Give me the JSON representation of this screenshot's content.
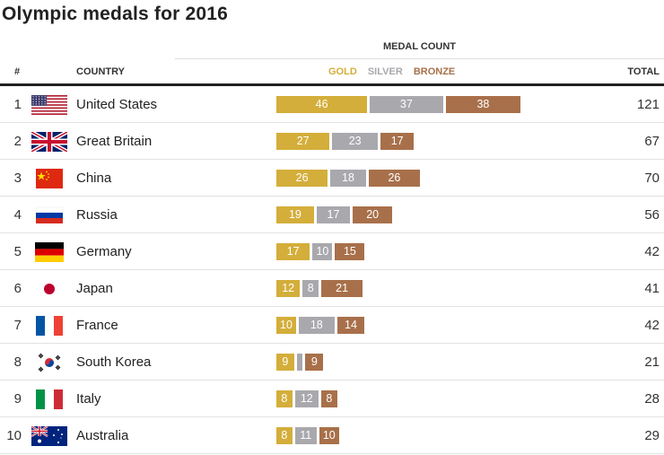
{
  "title": "Olympic medals for 2016",
  "header": {
    "rank": "#",
    "country": "COUNTRY",
    "medal_count": "MEDAL COUNT",
    "total": "TOTAL",
    "legend": {
      "gold": "GOLD",
      "silver": "SILVER",
      "bronze": "BRONZE"
    }
  },
  "colors": {
    "gold": "#d4ae3a",
    "silver": "#a9a8ad",
    "bronze": "#a8704a"
  },
  "chart_data": {
    "type": "bar",
    "stacked": true,
    "orientation": "horizontal",
    "title": "Olympic medals for 2016",
    "categories": [
      "United States",
      "Great Britain",
      "China",
      "Russia",
      "Germany",
      "Japan",
      "France",
      "South Korea",
      "Italy",
      "Australia"
    ],
    "series": [
      {
        "name": "GOLD",
        "values": [
          46,
          27,
          26,
          19,
          17,
          12,
          10,
          9,
          8,
          8
        ]
      },
      {
        "name": "SILVER",
        "values": [
          37,
          23,
          18,
          17,
          10,
          8,
          18,
          3,
          12,
          11
        ]
      },
      {
        "name": "BRONZE",
        "values": [
          38,
          17,
          26,
          20,
          15,
          21,
          14,
          9,
          8,
          10
        ]
      }
    ],
    "totals": [
      121,
      67,
      70,
      56,
      42,
      41,
      42,
      21,
      28,
      29
    ],
    "ranks": [
      "1",
      "2",
      "3",
      "4",
      "5",
      "6",
      "7",
      "8",
      "9",
      "10"
    ],
    "flags": [
      "us-flag-icon",
      "gb-flag-icon",
      "cn-flag-icon",
      "ru-flag-icon",
      "de-flag-icon",
      "jp-flag-icon",
      "fr-flag-icon",
      "kr-flag-icon",
      "it-flag-icon",
      "au-flag-icon"
    ],
    "silver_label_hidden": [
      false,
      false,
      false,
      false,
      false,
      false,
      false,
      true,
      false,
      false
    ]
  }
}
